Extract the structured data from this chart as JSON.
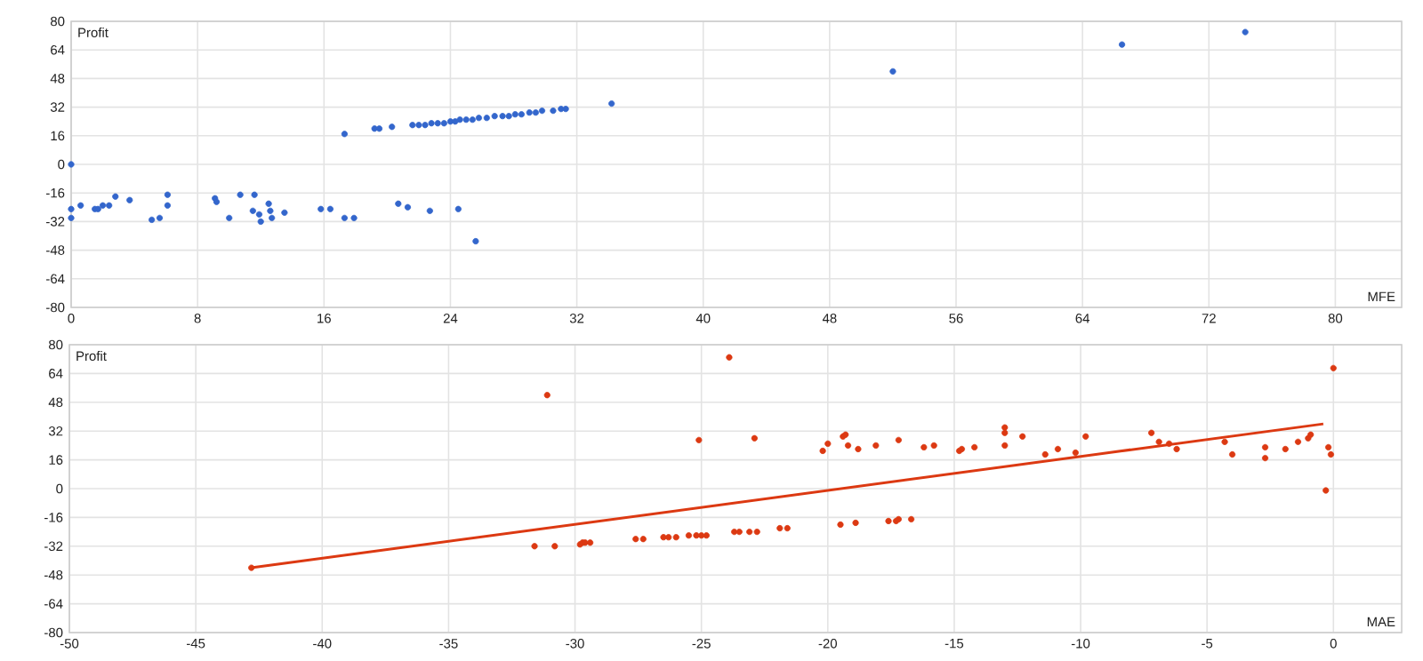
{
  "chart_data": [
    {
      "type": "scatter",
      "xlabel": "MFE",
      "ylabel": "Profit",
      "xlim": [
        0,
        84.2
      ],
      "ylim": [
        -80,
        80
      ],
      "xticks": [
        0,
        8,
        16,
        24,
        32,
        40,
        48,
        56,
        64,
        72,
        80
      ],
      "yticks": [
        -80,
        -64,
        -48,
        -32,
        -16,
        0,
        16,
        32,
        48,
        64,
        80
      ],
      "grid": true,
      "marker": "circle",
      "series": [
        {
          "color": "#3366cc",
          "x": [
            0,
            0,
            0,
            0.6,
            1.5,
            1.7,
            2,
            2.4,
            2.8,
            3.7,
            5.1,
            5.6,
            6.1,
            6.1,
            9.1,
            9.2,
            10,
            10.7,
            11.5,
            11.6,
            11.9,
            12,
            12.5,
            12.6,
            12.7,
            13.5,
            15.8,
            16.4,
            17.3,
            17.9,
            17.3,
            19.2,
            19.5,
            20.3,
            20.7,
            21.3,
            22.7,
            24.5,
            25.6,
            21.6,
            22,
            22.4,
            22.8,
            23.2,
            23.6,
            24,
            24.3,
            24.6,
            25,
            25.4,
            25.8,
            26.3,
            26.8,
            27.3,
            27.7,
            28.1,
            28.5,
            29,
            29.4,
            29.8,
            30.5,
            31,
            31.3,
            34.2,
            52,
            66.5,
            74.3
          ],
          "values": [
            0,
            -25,
            -30,
            -23,
            -25,
            -25,
            -23,
            -23,
            -18,
            -20,
            -31,
            -30,
            -23,
            -17,
            -19,
            -21,
            -30,
            -17,
            -26,
            -17,
            -28,
            -32,
            -22,
            -26,
            -30,
            -27,
            -25,
            -25,
            -30,
            -30,
            17,
            20,
            20,
            21,
            -22,
            -24,
            -26,
            -25,
            -43,
            22,
            22,
            22,
            23,
            23,
            23,
            24,
            24,
            25,
            25,
            25,
            26,
            26,
            27,
            27,
            27,
            28,
            28,
            29,
            29,
            30,
            30,
            31,
            31,
            34,
            52,
            67,
            74
          ]
        }
      ]
    },
    {
      "type": "scatter",
      "xlabel": "MAE",
      "ylabel": "Profit",
      "xlim": [
        -50,
        2.7
      ],
      "ylim": [
        -80,
        80
      ],
      "xticks": [
        -50,
        -45,
        -40,
        -35,
        -30,
        -25,
        -20,
        -15,
        -10,
        -5,
        0
      ],
      "yticks": [
        -80,
        -64,
        -48,
        -32,
        -16,
        0,
        16,
        32,
        48,
        64,
        80
      ],
      "grid": true,
      "marker": "circle",
      "series": [
        {
          "color": "#dc3912",
          "x": [
            -42.8,
            -31.6,
            -30.8,
            -31.1,
            -29.8,
            -29.7,
            -29.6,
            -29.4,
            -27.6,
            -27.3,
            -26.5,
            -26.3,
            -26,
            -25.5,
            -25.2,
            -25,
            -24.8,
            -25.1,
            -23.9,
            -23.7,
            -23.5,
            -23.1,
            -22.8,
            -22.9,
            -21.9,
            -21.6,
            -20.2,
            -20,
            -19.5,
            -18.9,
            -19.4,
            -19.3,
            -19.2,
            -18.8,
            -18.1,
            -17.6,
            -17.3,
            -17.2,
            -16.7,
            -17.2,
            -16.2,
            -15.8,
            -14.8,
            -14.7,
            -14.2,
            -13,
            -13,
            -13,
            -12.3,
            -11.4,
            -10.9,
            -10.2,
            -9.8,
            -7.2,
            -6.9,
            -6.5,
            -6.2,
            -4.3,
            -4,
            -2.7,
            -2.7,
            -1.9,
            -1.4,
            -1,
            -0.9,
            -0.2,
            -0.1,
            0,
            -0.3
          ],
          "values": [
            -44,
            -32,
            -32,
            52,
            -31,
            -30,
            -30,
            -30,
            -28,
            -28,
            -27,
            -27,
            -27,
            -26,
            -26,
            -26,
            -26,
            27,
            73,
            -24,
            -24,
            -24,
            -24,
            28,
            -22,
            -22,
            21,
            25,
            -20,
            -19,
            29,
            30,
            24,
            22,
            24,
            -18,
            -18,
            -17,
            -17,
            27,
            23,
            24,
            21,
            22,
            23,
            34,
            31,
            24,
            29,
            19,
            22,
            20,
            29,
            31,
            26,
            25,
            22,
            26,
            19,
            23,
            17,
            22,
            26,
            28,
            30,
            23,
            19,
            67,
            -1
          ]
        },
        {
          "type": "line",
          "marker": "none",
          "color": "#dc3912",
          "x": [
            -42.8,
            -0.4
          ],
          "values": [
            -44,
            36
          ]
        }
      ]
    }
  ]
}
